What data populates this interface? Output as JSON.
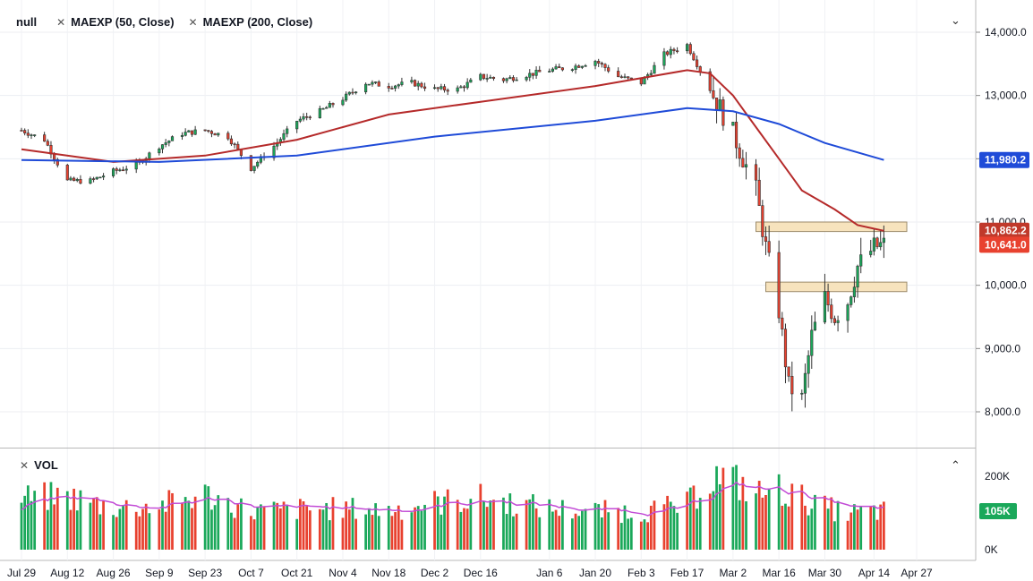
{
  "legend": {
    "symbol": "null",
    "ma50_label": "MAEXP (50, Close)",
    "ma200_label": "MAEXP (200, Close)",
    "volume_label": "VOL"
  },
  "colors": {
    "up": "#1aa85a",
    "down": "#e8412f",
    "ma50": "#b52a2a",
    "ma200": "#1f4bd8",
    "vol_ma": "#c24bd6",
    "zone_fill": "#f7e3bd",
    "zone_stroke": "#9b8a6a",
    "last_price_tag": "#e8412f",
    "ma50_tag": "#c0392b",
    "ma200_tag": "#1f4bd8",
    "volume_tag": "#1aa85a"
  },
  "chart_data": [
    {
      "type": "candlestick",
      "panel": "price",
      "x_tick_labels": [
        "Jul 29",
        "Aug 12",
        "Aug 26",
        "Sep 9",
        "Sep 23",
        "Oct 7",
        "Oct 21",
        "Nov 4",
        "Nov 18",
        "Dec 2",
        "Dec 16",
        "Jan 6",
        "Jan 20",
        "Feb 3",
        "Feb 17",
        "Mar 2",
        "Mar 16",
        "Mar 30",
        "Apr 14",
        "Apr 27"
      ],
      "y_tick_labels": [
        "14,000.0",
        "13,000.0",
        "12,000.0",
        "11,000.0",
        "10,000.0",
        "9,000.0",
        "8,000.0"
      ],
      "ylim": [
        7800,
        14250
      ],
      "price_path": [
        [
          "Jul 29",
          12450
        ],
        [
          "Aug 5",
          12300
        ],
        [
          "Aug 12",
          11650
        ],
        [
          "Aug 19",
          11650
        ],
        [
          "Aug 26",
          11800
        ],
        [
          "Sep 2",
          11900
        ],
        [
          "Sep 9",
          12200
        ],
        [
          "Sep 16",
          12400
        ],
        [
          "Sep 23",
          12450
        ],
        [
          "Sep 30",
          12350
        ],
        [
          "Oct 7",
          11850
        ],
        [
          "Oct 14",
          12200
        ],
        [
          "Oct 21",
          12600
        ],
        [
          "Oct 28",
          12750
        ],
        [
          "Nov 4",
          12950
        ],
        [
          "Nov 11",
          13200
        ],
        [
          "Nov 18",
          13150
        ],
        [
          "Nov 25",
          13200
        ],
        [
          "Dec 2",
          13100
        ],
        [
          "Dec 9",
          13100
        ],
        [
          "Dec 16",
          13300
        ],
        [
          "Dec 23",
          13250
        ],
        [
          "Jan 6",
          13400
        ],
        [
          "Jan 13",
          13450
        ],
        [
          "Jan 20",
          13550
        ],
        [
          "Jan 27",
          13300
        ],
        [
          "Feb 3",
          13200
        ],
        [
          "Feb 10",
          13650
        ],
        [
          "Feb 17",
          13800
        ],
        [
          "Feb 24",
          13100
        ],
        [
          "Mar 2",
          12400
        ],
        [
          "Mar 9",
          11500
        ],
        [
          "Mar 12",
          10600
        ],
        [
          "Mar 16",
          9600
        ],
        [
          "Mar 19",
          8400
        ],
        [
          "Mar 23",
          8200
        ],
        [
          "Mar 26",
          9200
        ],
        [
          "Mar 30",
          9800
        ],
        [
          "Apr 2",
          9500
        ],
        [
          "Apr 6",
          9750
        ],
        [
          "Apr 9",
          10300
        ],
        [
          "Apr 14",
          10600
        ],
        [
          "Apr 17",
          10641
        ]
      ],
      "series": [
        {
          "name": "MAEXP (50, Close)",
          "points": [
            [
              "Jul 29",
              12150
            ],
            [
              "Aug 26",
              11950
            ],
            [
              "Sep 23",
              12050
            ],
            [
              "Oct 21",
              12300
            ],
            [
              "Nov 18",
              12700
            ],
            [
              "Dec 16",
              12900
            ],
            [
              "Jan 20",
              13150
            ],
            [
              "Feb 17",
              13400
            ],
            [
              "Feb 24",
              13350
            ],
            [
              "Mar 2",
              13000
            ],
            [
              "Mar 9",
              12500
            ],
            [
              "Mar 16",
              12000
            ],
            [
              "Mar 23",
              11500
            ],
            [
              "Apr 2",
              11200
            ],
            [
              "Apr 9",
              10950
            ],
            [
              "Apr 17",
              10862
            ]
          ]
        },
        {
          "name": "MAEXP (200, Close)",
          "points": [
            [
              "Jul 29",
              11980
            ],
            [
              "Sep 9",
              11950
            ],
            [
              "Oct 21",
              12050
            ],
            [
              "Dec 2",
              12350
            ],
            [
              "Jan 20",
              12600
            ],
            [
              "Feb 17",
              12800
            ],
            [
              "Mar 2",
              12750
            ],
            [
              "Mar 16",
              12550
            ],
            [
              "Mar 30",
              12250
            ],
            [
              "Apr 17",
              11980
            ]
          ]
        }
      ],
      "annotations": [
        {
          "type": "zone",
          "y_low": 10850,
          "y_high": 11000,
          "x_start": "Mar 9",
          "x_end": "Apr 24"
        },
        {
          "type": "zone",
          "y_low": 9900,
          "y_high": 10050,
          "x_start": "Mar 12",
          "x_end": "Apr 24"
        }
      ],
      "price_tags": [
        {
          "label": "11,980.2",
          "series": "ma200"
        },
        {
          "label": "10,862.2",
          "series": "ma50"
        },
        {
          "label": "10,641.0",
          "series": "last"
        }
      ]
    },
    {
      "type": "bar",
      "panel": "volume",
      "y_tick_labels": [
        "200K",
        "0K"
      ],
      "ylim": [
        0,
        220000
      ],
      "profile": [
        [
          "Jul 29",
          140000
        ],
        [
          "Aug 12",
          145000
        ],
        [
          "Aug 26",
          115000
        ],
        [
          "Sep 9",
          120000
        ],
        [
          "Sep 23",
          150000
        ],
        [
          "Oct 7",
          105000
        ],
        [
          "Oct 21",
          110000
        ],
        [
          "Nov 4",
          112000
        ],
        [
          "Nov 18",
          108000
        ],
        [
          "Dec 2",
          128000
        ],
        [
          "Dec 16",
          140000
        ],
        [
          "Jan 6",
          112000
        ],
        [
          "Jan 20",
          105000
        ],
        [
          "Feb 3",
          103000
        ],
        [
          "Feb 17",
          122000
        ],
        [
          "Feb 24",
          200000
        ],
        [
          "Mar 2",
          190000
        ],
        [
          "Mar 9",
          150000
        ],
        [
          "Mar 16",
          165000
        ],
        [
          "Mar 23",
          140000
        ],
        [
          "Mar 30",
          115000
        ],
        [
          "Apr 6",
          100000
        ],
        [
          "Apr 17",
          105000
        ]
      ],
      "ma_level": 105000,
      "last_volume_tag": "105K"
    }
  ]
}
